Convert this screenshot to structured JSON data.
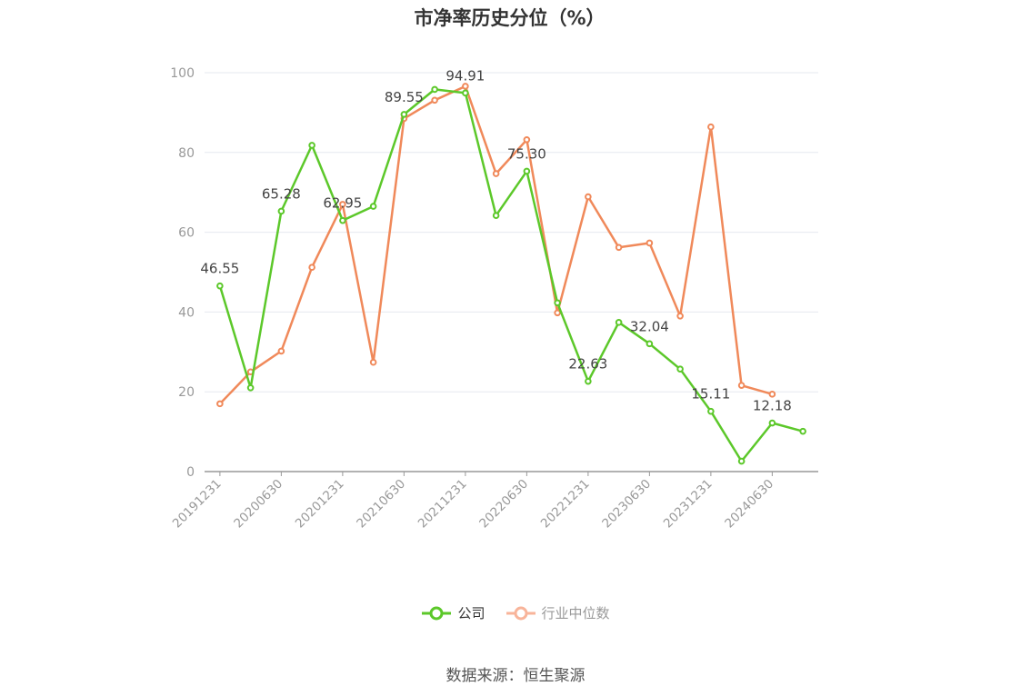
{
  "chart_data": {
    "type": "line",
    "title": "市净率历史分位（%）",
    "xlabel": "",
    "ylabel": "",
    "ylim": [
      0,
      100
    ],
    "yticks": [
      0,
      20,
      40,
      60,
      80,
      100
    ],
    "grid": true,
    "legend_position": "bottom",
    "x": [
      "20191231",
      "20200331",
      "20200630",
      "20200930",
      "20201231",
      "20210331",
      "20210630",
      "20210930",
      "20211231",
      "20220331",
      "20220630",
      "20220930",
      "20221231",
      "20230331",
      "20230630",
      "20230930",
      "20231231",
      "20240331",
      "20240630",
      "20240930"
    ],
    "xtick_labels": [
      "20191231",
      "20200630",
      "20201231",
      "20210630",
      "20211231",
      "20220630",
      "20221231",
      "20230630",
      "20231231",
      "20240630"
    ],
    "series": [
      {
        "name": "公司",
        "color": "#5cc82a",
        "values": [
          46.55,
          21.0,
          65.28,
          81.8,
          62.95,
          66.5,
          89.55,
          95.8,
          94.91,
          64.2,
          75.3,
          42.3,
          22.63,
          37.4,
          32.04,
          25.7,
          15.11,
          2.6,
          12.18,
          10.1
        ],
        "data_labels": [
          {
            "index": 0,
            "text": "46.55"
          },
          {
            "index": 2,
            "text": "65.28"
          },
          {
            "index": 4,
            "text": "62.95"
          },
          {
            "index": 6,
            "text": "89.55"
          },
          {
            "index": 8,
            "text": "94.91"
          },
          {
            "index": 10,
            "text": "75.30"
          },
          {
            "index": 12,
            "text": "22.63"
          },
          {
            "index": 14,
            "text": "32.04"
          },
          {
            "index": 16,
            "text": "15.11"
          },
          {
            "index": 18,
            "text": "12.18"
          }
        ]
      },
      {
        "name": "行业中位数",
        "color": "#f0895a",
        "values": [
          17.0,
          25.0,
          30.2,
          51.2,
          67.0,
          27.4,
          88.5,
          93.1,
          96.6,
          74.7,
          83.2,
          39.8,
          68.9,
          56.2,
          57.3,
          39.0,
          86.4,
          21.6,
          19.4,
          null
        ]
      }
    ]
  },
  "legend": [
    {
      "label": "公司",
      "color": "#5cc82a",
      "active": true
    },
    {
      "label": "行业中位数",
      "color": "#f8b49a",
      "active": false
    }
  ],
  "source_text": "数据来源：恒生聚源"
}
